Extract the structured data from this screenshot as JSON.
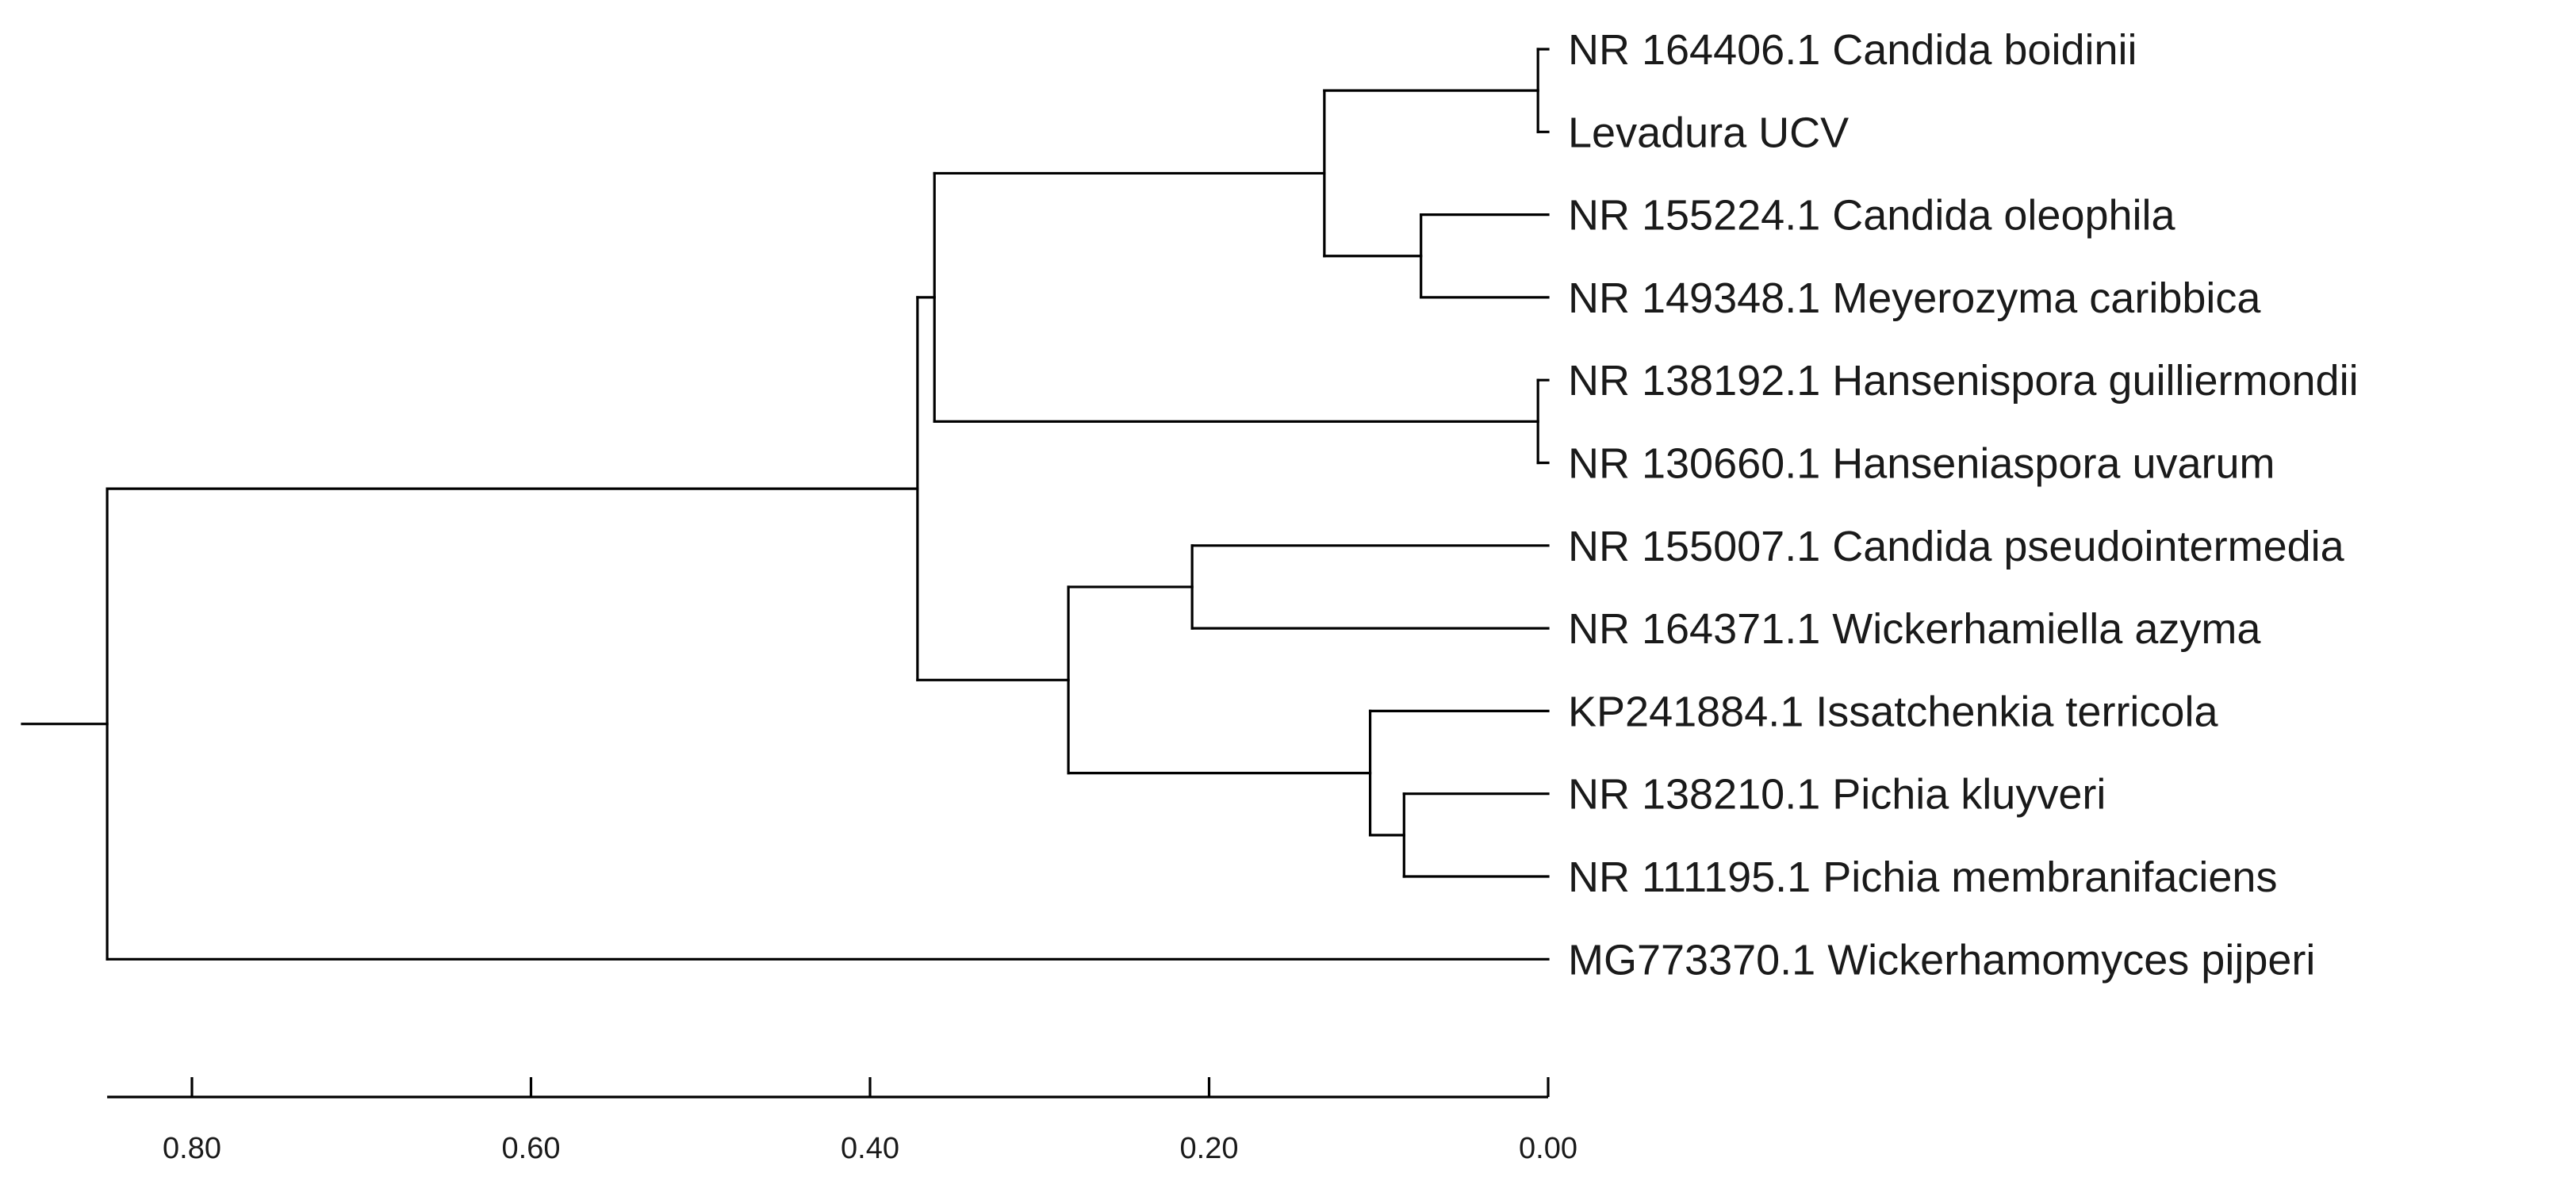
{
  "tree": {
    "leaves": [
      "NR 164406.1 Candida boidinii",
      "Levadura UCV",
      "NR 155224.1 Candida oleophila",
      "NR 149348.1 Meyerozyma caribbica",
      "NR 138192.1 Hansenispora guilliermondii",
      "NR 130660.1 Hanseniaspora uvarum",
      "NR 155007.1 Candida pseudointermedia",
      "NR 164371.1 Wickerhamiella azyma",
      "KP241884.1 Issatchenkia terricola",
      "NR 138210.1 Pichia kluyveri",
      "NR 111195.1 Pichia membranifaciens",
      "MG773370.1 Wickerhamomyces pijperi"
    ],
    "nodes": {
      "n_boid_levad": {
        "height": 0.006,
        "children": [
          "L0",
          "L1"
        ]
      },
      "n_oleo_meyer": {
        "height": 0.075,
        "children": [
          "L2",
          "L3"
        ]
      },
      "n_candida_grp": {
        "height": 0.132,
        "children": [
          "n_boid_levad",
          "n_oleo_meyer"
        ]
      },
      "n_hanseniaspora": {
        "height": 0.006,
        "children": [
          "L4",
          "L5"
        ]
      },
      "n_upper": {
        "height": 0.362,
        "children": [
          "n_candida_grp",
          "n_hanseniaspora"
        ]
      },
      "n_pseudo_wick": {
        "height": 0.21,
        "children": [
          "L6",
          "L7"
        ]
      },
      "n_pichia_pair": {
        "height": 0.085,
        "children": [
          "L9",
          "L10"
        ]
      },
      "n_pichia_grp": {
        "height": 0.105,
        "children": [
          "L8",
          "n_pichia_pair"
        ]
      },
      "n_lower": {
        "height": 0.283,
        "children": [
          "n_pseudo_wick",
          "n_pichia_grp"
        ]
      },
      "n_ingroup": {
        "height": 0.372,
        "children": [
          "n_upper",
          "n_lower"
        ]
      },
      "root": {
        "height": 0.85,
        "children": [
          "n_ingroup",
          "L11"
        ]
      }
    },
    "root_id": "root"
  },
  "axis": {
    "ticks": [
      0.8,
      0.6,
      0.4,
      0.2,
      0.0
    ],
    "tick_labels": [
      "0.80",
      "0.60",
      "0.40",
      "0.20",
      "0.00"
    ],
    "domain": [
      0.85,
      0.0
    ]
  }
}
